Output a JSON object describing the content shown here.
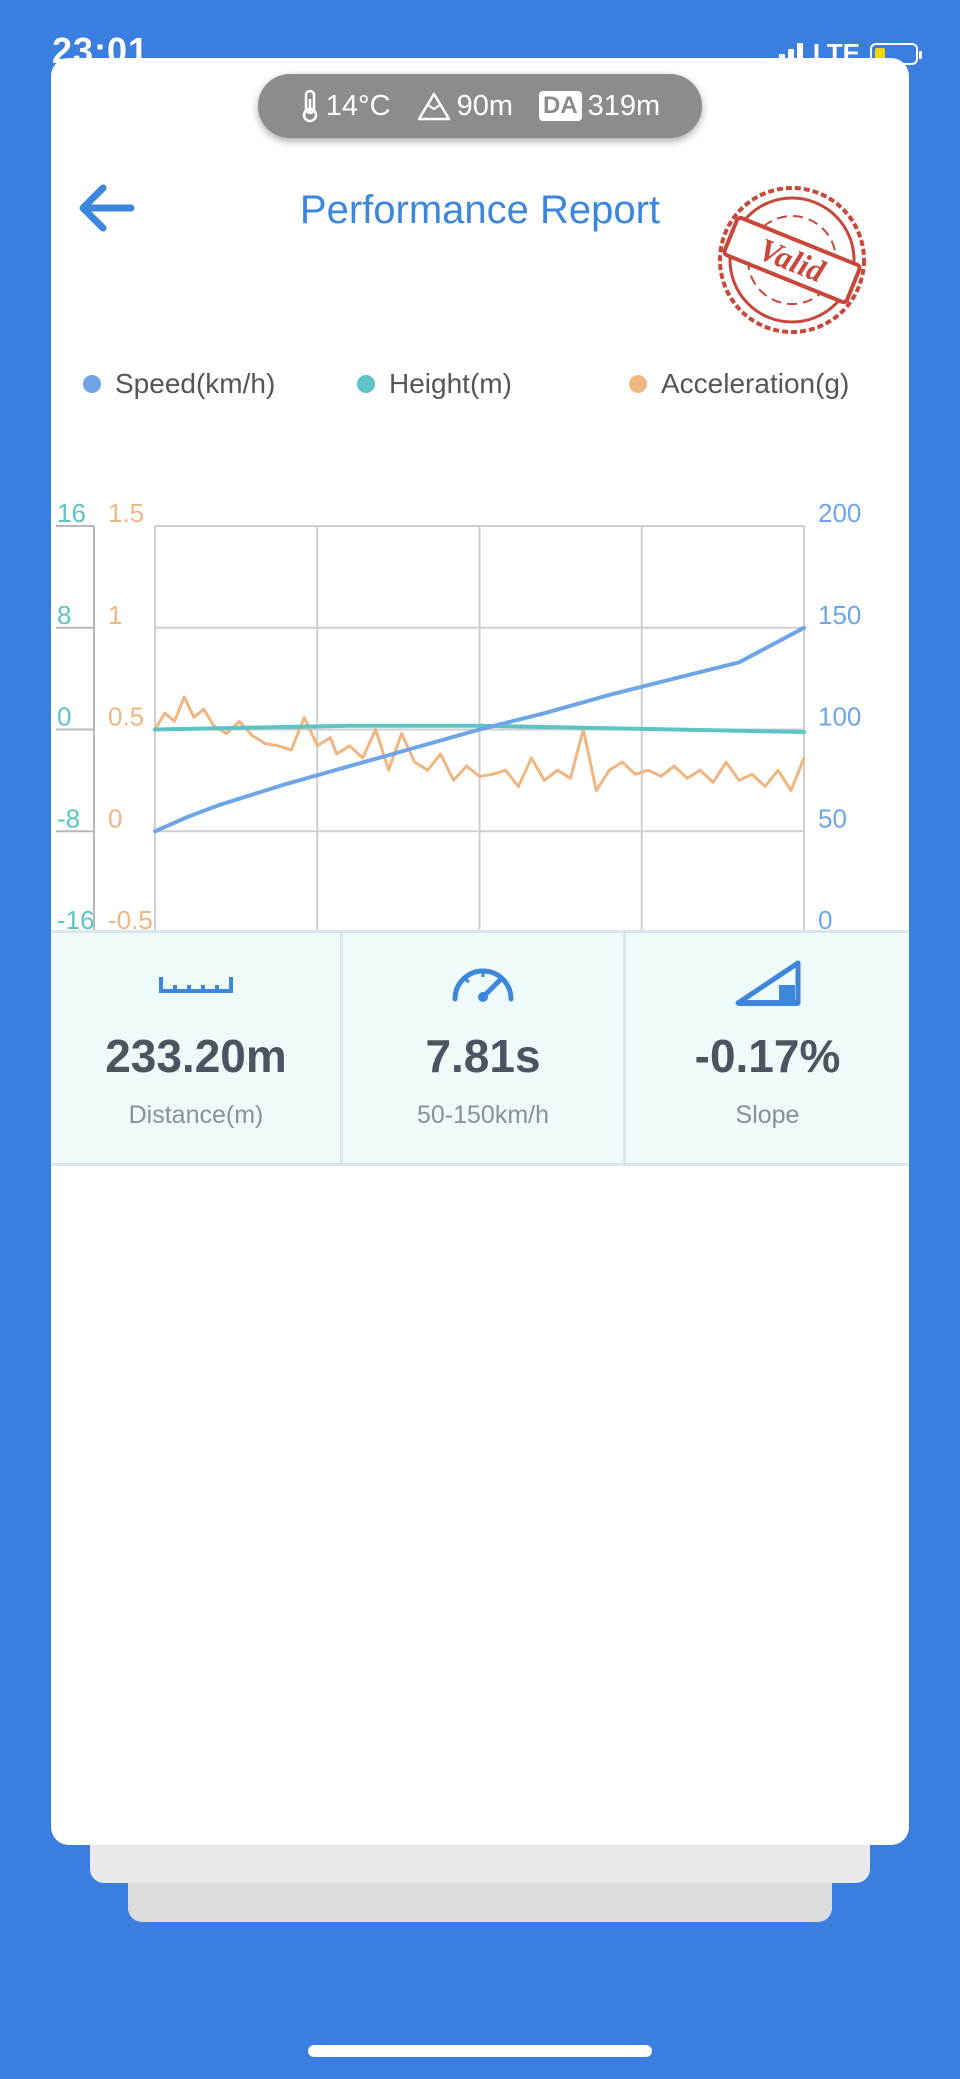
{
  "status_bar": {
    "time": "23:01",
    "network": "LTE"
  },
  "conditions": {
    "temperature": "14°C",
    "altitude": "90m",
    "da_label": "DA",
    "density_altitude": "319m"
  },
  "header": {
    "title": "Performance Report",
    "stamp_text": "Valid"
  },
  "legend": [
    "Speed(km/h)",
    "Height(m)",
    "Acceleration(g)"
  ],
  "colors": {
    "speed": "#6ea5e6",
    "height": "#5cc4c4",
    "acceleration": "#f0b681",
    "title": "#3c86dc",
    "background": "#3a7fe0",
    "stamp": "#c8473a"
  },
  "chart_data": {
    "type": "line",
    "y_axes": {
      "height": {
        "ticks": [
          "16",
          "8",
          "0",
          "-8",
          "-16"
        ],
        "range": [
          -16,
          16
        ]
      },
      "acceleration": {
        "ticks": [
          "1.5",
          "1",
          "0.5",
          "0",
          "-0.5"
        ],
        "range": [
          -0.5,
          1.5
        ]
      },
      "speed": {
        "ticks": [
          "200",
          "150",
          "100",
          "50",
          "0"
        ],
        "range": [
          0,
          200
        ]
      }
    },
    "grid": true,
    "x_range": [
      0,
      1
    ],
    "series": [
      {
        "name": "Speed(km/h)",
        "axis": "speed",
        "x": [
          0,
          0.05,
          0.1,
          0.2,
          0.3,
          0.4,
          0.5,
          0.6,
          0.7,
          0.8,
          0.9,
          1.0
        ],
        "values": [
          50,
          57,
          63,
          73,
          82,
          91,
          100,
          108,
          117,
          125,
          133,
          150
        ]
      },
      {
        "name": "Height(m)",
        "axis": "height",
        "x": [
          0,
          0.1,
          0.2,
          0.3,
          0.4,
          0.5,
          0.6,
          0.7,
          0.8,
          0.9,
          1.0
        ],
        "values": [
          0,
          0.1,
          0.2,
          0.3,
          0.3,
          0.3,
          0.2,
          0.1,
          0,
          -0.1,
          -0.2
        ]
      },
      {
        "name": "Acceleration(g)",
        "axis": "acceleration",
        "x": [
          0,
          0.015,
          0.03,
          0.045,
          0.06,
          0.075,
          0.09,
          0.11,
          0.13,
          0.15,
          0.17,
          0.19,
          0.21,
          0.23,
          0.25,
          0.27,
          0.28,
          0.3,
          0.32,
          0.34,
          0.36,
          0.38,
          0.4,
          0.42,
          0.44,
          0.46,
          0.48,
          0.5,
          0.52,
          0.54,
          0.56,
          0.58,
          0.6,
          0.62,
          0.64,
          0.66,
          0.68,
          0.7,
          0.72,
          0.74,
          0.76,
          0.78,
          0.8,
          0.82,
          0.84,
          0.86,
          0.88,
          0.9,
          0.92,
          0.94,
          0.96,
          0.98,
          1.0
        ],
        "values": [
          0.5,
          0.58,
          0.54,
          0.66,
          0.56,
          0.6,
          0.52,
          0.48,
          0.54,
          0.47,
          0.43,
          0.42,
          0.4,
          0.56,
          0.42,
          0.46,
          0.38,
          0.42,
          0.36,
          0.5,
          0.3,
          0.48,
          0.34,
          0.3,
          0.38,
          0.25,
          0.32,
          0.27,
          0.28,
          0.3,
          0.22,
          0.36,
          0.25,
          0.3,
          0.26,
          0.5,
          0.2,
          0.3,
          0.34,
          0.28,
          0.3,
          0.27,
          0.32,
          0.26,
          0.3,
          0.24,
          0.34,
          0.25,
          0.28,
          0.22,
          0.3,
          0.2,
          0.36
        ]
      }
    ]
  },
  "stats": [
    {
      "value": "233.20m",
      "label": "Distance(m)",
      "icon": "ruler-icon"
    },
    {
      "value": "7.81s",
      "label": "50-150km/h",
      "icon": "speedometer-icon"
    },
    {
      "value": "-0.17%",
      "label": "Slope",
      "icon": "slope-icon"
    }
  ]
}
